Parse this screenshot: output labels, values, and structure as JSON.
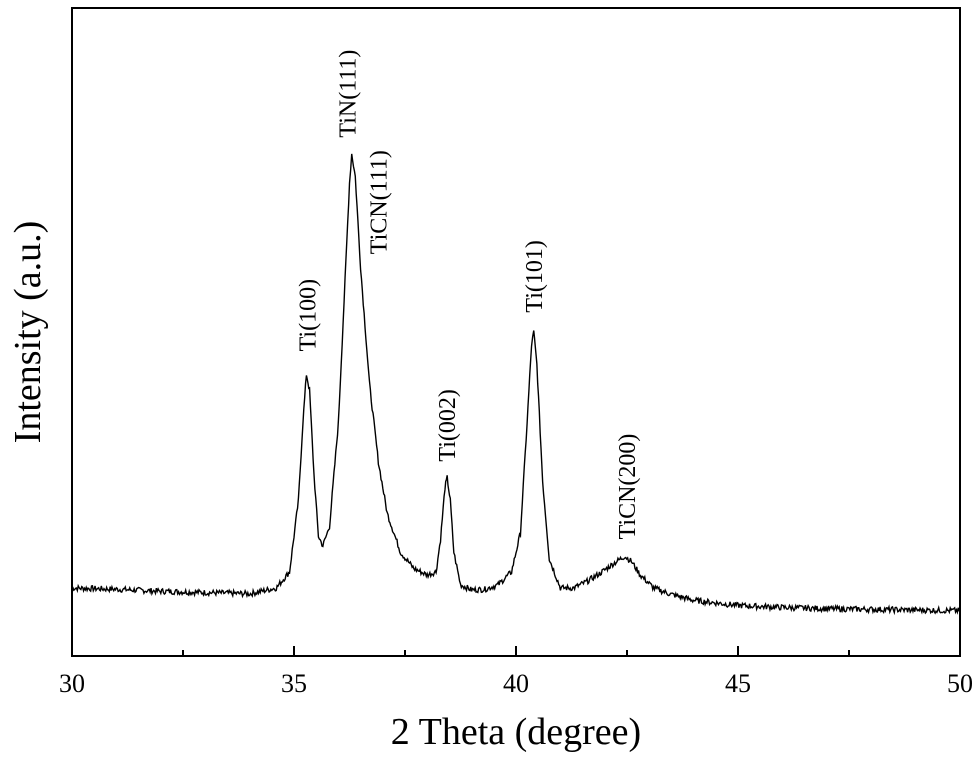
{
  "chart_data": {
    "type": "line",
    "xlabel": "2 Theta (degree)",
    "ylabel": "Intensity (a.u.)",
    "xlim": [
      30,
      50
    ],
    "ylim": [
      0,
      100
    ],
    "grid": false,
    "x_ticks": [
      30,
      35,
      40,
      45,
      50
    ],
    "x_tick_labels": [
      "30",
      "35",
      "40",
      "45",
      "50"
    ],
    "x_minor_step": 2.5,
    "y_tick_labels": [],
    "series": [
      {
        "color": "#000000",
        "points": [
          [
            30.0,
            10.5
          ],
          [
            31.0,
            10.3
          ],
          [
            32.0,
            10.0
          ],
          [
            33.0,
            9.8
          ],
          [
            34.0,
            9.6
          ],
          [
            34.6,
            10.5
          ],
          [
            34.9,
            13.0
          ],
          [
            35.1,
            24.0
          ],
          [
            35.2,
            36.0
          ],
          [
            35.28,
            43.5
          ],
          [
            35.35,
            41.0
          ],
          [
            35.45,
            28.0
          ],
          [
            35.55,
            18.5
          ],
          [
            35.65,
            17.0
          ],
          [
            35.8,
            20.0
          ],
          [
            36.0,
            36.0
          ],
          [
            36.15,
            58.0
          ],
          [
            36.25,
            73.0
          ],
          [
            36.3,
            77.5
          ],
          [
            36.38,
            74.0
          ],
          [
            36.5,
            60.0
          ],
          [
            36.7,
            42.0
          ],
          [
            36.9,
            30.0
          ],
          [
            37.1,
            22.0
          ],
          [
            37.4,
            16.0
          ],
          [
            37.7,
            13.5
          ],
          [
            38.0,
            12.5
          ],
          [
            38.2,
            13.0
          ],
          [
            38.3,
            18.0
          ],
          [
            38.4,
            26.0
          ],
          [
            38.45,
            27.5
          ],
          [
            38.52,
            24.0
          ],
          [
            38.6,
            16.0
          ],
          [
            38.75,
            11.0
          ],
          [
            39.0,
            10.2
          ],
          [
            39.3,
            10.3
          ],
          [
            39.6,
            11.0
          ],
          [
            39.9,
            13.0
          ],
          [
            40.1,
            19.0
          ],
          [
            40.25,
            36.0
          ],
          [
            40.35,
            48.0
          ],
          [
            40.4,
            50.0
          ],
          [
            40.47,
            45.0
          ],
          [
            40.6,
            27.0
          ],
          [
            40.75,
            15.0
          ],
          [
            41.0,
            10.5
          ],
          [
            41.3,
            10.5
          ],
          [
            41.6,
            11.5
          ],
          [
            41.9,
            12.8
          ],
          [
            42.2,
            14.3
          ],
          [
            42.45,
            15.4
          ],
          [
            42.6,
            14.6
          ],
          [
            42.8,
            12.5
          ],
          [
            43.1,
            10.5
          ],
          [
            43.5,
            9.5
          ],
          [
            44.0,
            8.6
          ],
          [
            45.0,
            7.8
          ],
          [
            46.0,
            7.5
          ],
          [
            47.0,
            7.3
          ],
          [
            48.0,
            7.2
          ],
          [
            49.0,
            7.1
          ],
          [
            50.0,
            7.0
          ]
        ]
      }
    ],
    "annotations": [
      {
        "text": "Ti(100)",
        "x": 35.3,
        "y": 47
      },
      {
        "text": "TiN(111)",
        "x": 36.2,
        "y": 80
      },
      {
        "text": "TiCN(111)",
        "x": 36.9,
        "y": 62
      },
      {
        "text": "Ti(002)",
        "x": 38.45,
        "y": 30
      },
      {
        "text": "Ti(101)",
        "x": 40.4,
        "y": 53
      },
      {
        "text": "TiCN(200)",
        "x": 42.5,
        "y": 18
      }
    ]
  }
}
